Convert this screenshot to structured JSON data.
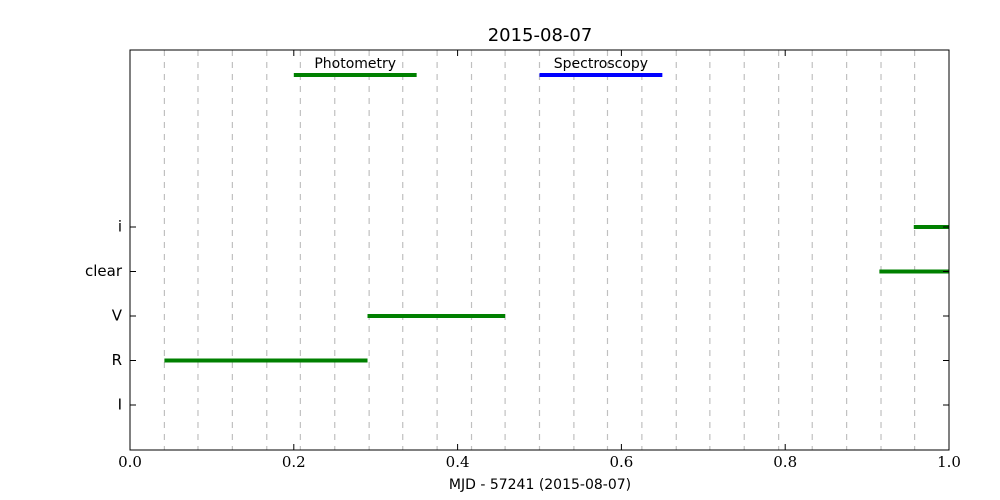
{
  "chart_data": {
    "type": "timeline",
    "title": "2015-08-07",
    "xlabel": "MJD - 57241 (2015-08-07)",
    "xlim": [
      0,
      1
    ],
    "xticks": [
      {
        "value": 0,
        "label": "0.0"
      },
      0.2,
      0.4,
      0.6,
      0.8,
      {
        "value": 1,
        "label": "1.0"
      }
    ],
    "vgrid": [
      0.042,
      0.083,
      0.125,
      0.167,
      0.208,
      0.25,
      0.292,
      0.333,
      0.375,
      0.417,
      0.458,
      0.5,
      0.542,
      0.583,
      0.625,
      0.667,
      0.708,
      0.75,
      0.792,
      0.833,
      0.875,
      0.917,
      0.958
    ],
    "categories": [
      "I",
      "R",
      "V",
      "clear",
      "i"
    ],
    "series": [
      {
        "name": "Photometry",
        "color": "#008000",
        "rows": [
          "R",
          "V",
          "clear",
          "i"
        ],
        "starts": [
          0.042,
          0.29,
          0.915,
          0.957
        ],
        "ends": [
          0.29,
          0.458,
          1.0,
          1.0
        ]
      },
      {
        "name": "Spectroscopy",
        "color": "#0000ff",
        "rows": [],
        "starts": [],
        "ends": []
      }
    ]
  }
}
